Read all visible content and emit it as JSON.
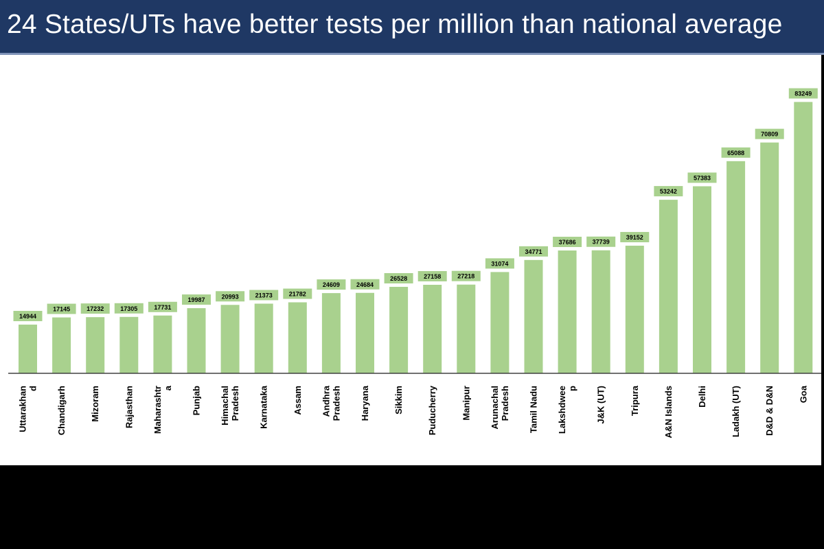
{
  "slide": {
    "title": "24 States/UTs have better tests per million than national average"
  },
  "colors": {
    "title_bg": "#1f3864",
    "bar": "#a9d18e",
    "background": "#ffffff",
    "letterbox": "#000000"
  },
  "chart_data": {
    "type": "bar",
    "title": "24 States/UTs have better tests per million than national average",
    "xlabel": "",
    "ylabel": "",
    "grid": false,
    "legend": "none",
    "categories": [
      [
        "Uttarakhan",
        "d"
      ],
      [
        "Chandigarh"
      ],
      [
        "Mizoram"
      ],
      [
        "Rajasthan"
      ],
      [
        "Maharashtr",
        "a"
      ],
      [
        "Punjab"
      ],
      [
        "Himachal",
        "Pradesh"
      ],
      [
        "Karnataka"
      ],
      [
        "Assam"
      ],
      [
        "Andhra",
        "Pradesh"
      ],
      [
        "Haryana"
      ],
      [
        "Sikkim"
      ],
      [
        "Puducherry"
      ],
      [
        "Manipur"
      ],
      [
        "Arunachal",
        "Pradesh"
      ],
      [
        "Tamil Nadu"
      ],
      [
        "Lakshdwee",
        "p"
      ],
      [
        "J&K (UT)"
      ],
      [
        "Tripura"
      ],
      [
        "A&N Islands"
      ],
      [
        "Delhi"
      ],
      [
        "Ladakh (UT)"
      ],
      [
        "D&D & D&N"
      ],
      [
        "Goa"
      ]
    ],
    "values": [
      14944,
      17145,
      17232,
      17305,
      17731,
      19987,
      20993,
      21373,
      21782,
      24609,
      24684,
      26528,
      27158,
      27218,
      31074,
      34771,
      37686,
      37739,
      39152,
      53242,
      57383,
      65088,
      70809,
      83249
    ],
    "data_labels": [
      "14944",
      "17145",
      "17232",
      "17305",
      "17731",
      "19987",
      "20993",
      "21373",
      "21782",
      "24609",
      "24684",
      "26528",
      "27158",
      "27218",
      "31074",
      "34771",
      "37686",
      "37739",
      "39152",
      "53242",
      "57383",
      "65088",
      "70809",
      "83249"
    ],
    "ylim": [
      0,
      86000
    ]
  }
}
